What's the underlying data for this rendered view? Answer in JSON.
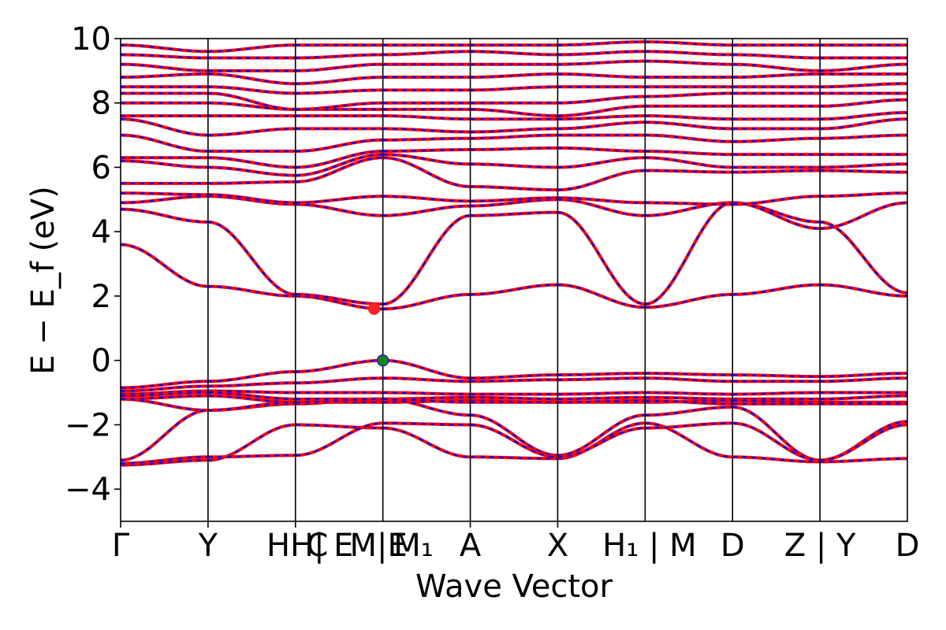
{
  "chart_data": {
    "type": "line",
    "title": "",
    "xlabel": "Wave Vector",
    "ylabel": "E − E_f (eV)",
    "ylim": [
      -5,
      10
    ],
    "yticks": [
      -4,
      -2,
      0,
      2,
      4,
      6,
      8,
      10
    ],
    "ytick_labels": [
      "−4",
      "−2",
      "0",
      "2",
      "4",
      "6",
      "8",
      "10"
    ],
    "kpoint_labels": [
      "Γ",
      "Y",
      "H|H",
      "C",
      "E",
      "M|E",
      "M₁",
      "A",
      "X",
      "H₁ | M",
      "D",
      "Z | Y",
      "D"
    ],
    "kpoint_label_text": [
      "Γ",
      "Y",
      "HH|",
      "C",
      "E",
      "M|E",
      "M₁",
      "A",
      "X",
      "H₁ | M",
      "D",
      "Z | Y",
      "D"
    ],
    "segments": [
      {
        "from": "Γ",
        "to": "Y",
        "x": [
          0,
          1
        ]
      },
      {
        "from": "Y",
        "to": "H",
        "x": [
          1,
          2
        ]
      },
      {
        "from": "H",
        "to": "M",
        "x": [
          2,
          3
        ]
      },
      {
        "from": "M",
        "to": "A",
        "x": [
          3,
          4
        ]
      },
      {
        "from": "A",
        "to": "X",
        "x": [
          4,
          5
        ]
      },
      {
        "from": "X",
        "to": "H₁",
        "x": [
          5,
          6
        ]
      },
      {
        "from": "M",
        "to": "D",
        "x": [
          6,
          7
        ]
      },
      {
        "from": "D",
        "to": "Z",
        "x": [
          7,
          8
        ]
      },
      {
        "from": "Y",
        "to": "D",
        "x": [
          8,
          9
        ]
      }
    ],
    "series": [
      {
        "name": "",
        "color": "#ff0000",
        "style": "solid"
      },
      {
        "name": "",
        "color": "#0000ff",
        "style": "dashed"
      }
    ],
    "markers": [
      {
        "role": "cbm",
        "x": 2.9,
        "y": 1.6,
        "color": "#ff2020"
      },
      {
        "role": "vbm",
        "x": 3.0,
        "y": 0.0,
        "color": "#118811"
      }
    ],
    "valence_bands": [
      [
        -0.85,
        -0.65,
        -0.35,
        0.0,
        -0.55,
        -0.45,
        -0.4,
        -0.45,
        -0.5,
        -0.4
      ],
      [
        -0.95,
        -0.8,
        -0.7,
        -0.55,
        -0.65,
        -0.6,
        -0.55,
        -0.65,
        -0.65,
        -0.55
      ],
      [
        -1.05,
        -0.95,
        -1.0,
        -1.0,
        -1.05,
        -1.05,
        -1.0,
        -1.05,
        -1.0,
        -1.0
      ],
      [
        -1.1,
        -1.0,
        -1.2,
        -1.2,
        -1.15,
        -1.2,
        -1.15,
        -1.2,
        -1.2,
        -1.1
      ],
      [
        -1.2,
        -1.1,
        -1.3,
        -1.3,
        -1.25,
        -1.3,
        -1.3,
        -1.25,
        -1.3,
        -1.3
      ],
      [
        -1.2,
        -1.55,
        -1.35,
        -1.2,
        -1.3,
        -1.3,
        -1.25,
        -1.35,
        -1.35,
        -1.35
      ],
      [
        -3.1,
        -1.55,
        -1.3,
        -1.2,
        -1.7,
        -2.95,
        -1.7,
        -1.45,
        -3.1,
        -1.9
      ],
      [
        -3.25,
        -3.1,
        -2.0,
        -2.1,
        -3.0,
        -3.05,
        -1.95,
        -3.0,
        -3.15,
        -3.05
      ],
      [
        -3.2,
        -3.0,
        -2.95,
        -1.95,
        -2.0,
        -3.0,
        -2.1,
        -1.95,
        -3.1,
        -2.0
      ]
    ],
    "conduction_bands": [
      [
        3.6,
        2.3,
        2.0,
        1.6,
        2.05,
        2.35,
        1.65,
        2.05,
        2.35,
        2.0
      ],
      [
        4.7,
        4.3,
        2.05,
        1.75,
        4.5,
        4.6,
        1.75,
        4.9,
        4.3,
        2.1
      ],
      [
        4.9,
        5.1,
        4.85,
        4.5,
        4.8,
        5.0,
        4.5,
        4.9,
        4.1,
        4.9
      ],
      [
        5.2,
        5.15,
        4.9,
        5.1,
        4.95,
        5.05,
        4.9,
        4.85,
        5.1,
        5.2
      ],
      [
        5.5,
        5.5,
        5.55,
        6.3,
        5.4,
        5.3,
        5.9,
        5.85,
        5.9,
        5.85
      ],
      [
        6.2,
        6.0,
        5.75,
        6.4,
        6.1,
        6.0,
        6.3,
        6.0,
        6.0,
        6.1
      ],
      [
        6.3,
        6.3,
        6.0,
        6.5,
        6.55,
        6.6,
        6.5,
        6.4,
        6.4,
        6.4
      ],
      [
        7.0,
        6.5,
        6.5,
        6.85,
        6.9,
        7.0,
        7.0,
        6.8,
        6.9,
        7.0
      ],
      [
        7.5,
        7.0,
        7.2,
        7.2,
        7.1,
        7.2,
        7.4,
        7.2,
        7.2,
        7.5
      ],
      [
        7.6,
        7.6,
        7.6,
        7.6,
        7.5,
        7.5,
        7.6,
        7.5,
        7.5,
        7.7
      ],
      [
        8.0,
        8.0,
        7.8,
        7.8,
        7.8,
        7.6,
        7.9,
        7.9,
        7.9,
        8.1
      ],
      [
        8.3,
        8.3,
        7.8,
        8.0,
        8.0,
        8.0,
        8.2,
        8.3,
        8.3,
        8.3
      ],
      [
        8.5,
        8.5,
        8.3,
        8.4,
        8.4,
        8.5,
        8.5,
        8.5,
        8.5,
        8.6
      ],
      [
        8.8,
        8.9,
        8.6,
        8.8,
        8.8,
        8.9,
        8.8,
        8.8,
        8.9,
        8.9
      ],
      [
        9.2,
        9.0,
        9.0,
        9.2,
        9.2,
        9.2,
        9.3,
        9.2,
        9.0,
        9.2
      ],
      [
        9.5,
        9.4,
        9.4,
        9.5,
        9.6,
        9.5,
        9.6,
        9.5,
        9.4,
        9.4
      ],
      [
        9.8,
        9.6,
        9.8,
        9.8,
        9.8,
        9.8,
        9.9,
        9.8,
        9.8,
        9.8
      ]
    ]
  }
}
